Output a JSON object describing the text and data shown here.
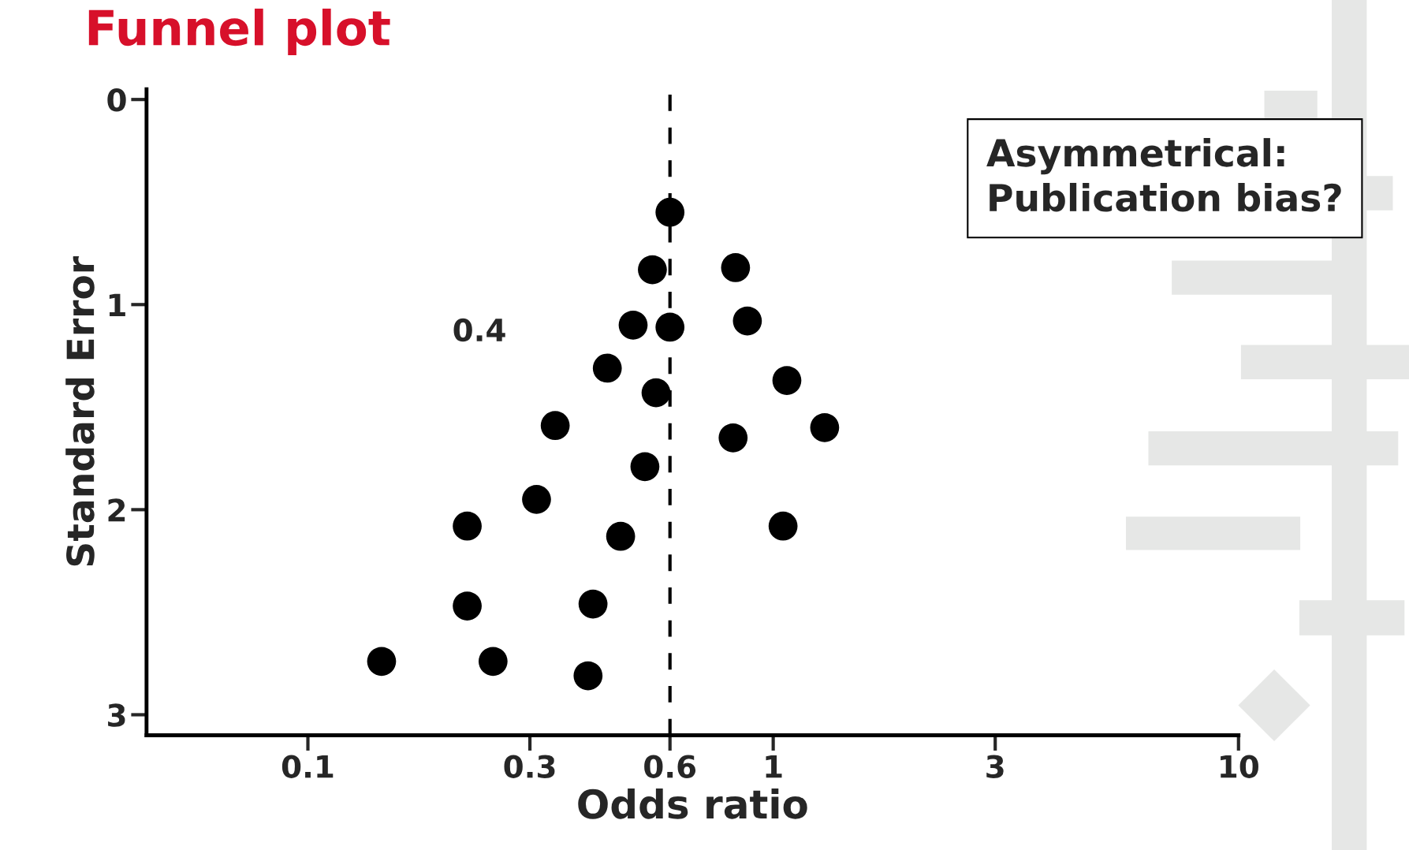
{
  "chart_data": {
    "type": "scatter",
    "title": "Funnel plot",
    "xlabel": "Odds ratio",
    "ylabel": "Standard Error",
    "log": "x",
    "x": [
      0.6,
      0.55,
      0.83,
      0.5,
      0.6,
      0.88,
      0.44,
      0.56,
      1.07,
      0.34,
      0.82,
      1.29,
      0.53,
      0.31,
      0.22,
      0.47,
      1.05,
      0.22,
      0.41,
      0.144,
      0.25,
      0.4
    ],
    "series": [
      {
        "color": "#000000",
        "values": [
          0.55,
          0.83,
          0.82,
          1.1,
          1.11,
          1.08,
          1.31,
          1.43,
          1.37,
          1.59,
          1.65,
          1.6,
          1.79,
          1.95,
          2.08,
          2.13,
          2.08,
          2.47,
          2.46,
          2.74,
          2.74,
          2.81
        ]
      }
    ],
    "marker": "circle",
    "grid": false,
    "xlim": [
      0.045,
      10
    ],
    "xticks": [
      0.1,
      0.3,
      0.6,
      1,
      3,
      10
    ],
    "ylim": [
      3.1,
      -0.05
    ],
    "yticks": [
      0,
      1,
      2,
      3
    ],
    "ref_lines": [
      {
        "axis": "x",
        "value": 0.6,
        "line_style": "dashed",
        "color": "#000000"
      }
    ],
    "annotations": [
      "0.4",
      "Asymmetrical:\nPublication bias?"
    ]
  }
}
